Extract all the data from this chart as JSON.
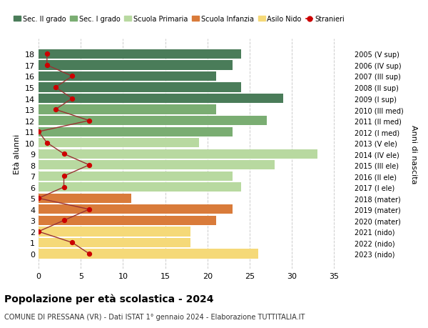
{
  "ages": [
    18,
    17,
    16,
    15,
    14,
    13,
    12,
    11,
    10,
    9,
    8,
    7,
    6,
    5,
    4,
    3,
    2,
    1,
    0
  ],
  "years": [
    "2005 (V sup)",
    "2006 (IV sup)",
    "2007 (III sup)",
    "2008 (II sup)",
    "2009 (I sup)",
    "2010 (III med)",
    "2011 (II med)",
    "2012 (I med)",
    "2013 (V ele)",
    "2014 (IV ele)",
    "2015 (III ele)",
    "2016 (II ele)",
    "2017 (I ele)",
    "2018 (mater)",
    "2019 (mater)",
    "2020 (mater)",
    "2021 (nido)",
    "2022 (nido)",
    "2023 (nido)"
  ],
  "bar_values": [
    24,
    23,
    21,
    24,
    29,
    21,
    27,
    23,
    19,
    33,
    28,
    23,
    24,
    11,
    23,
    21,
    18,
    18,
    26
  ],
  "bar_colors": [
    "#4a7c59",
    "#4a7c59",
    "#4a7c59",
    "#4a7c59",
    "#4a7c59",
    "#7aad72",
    "#7aad72",
    "#7aad72",
    "#b8d9a0",
    "#b8d9a0",
    "#b8d9a0",
    "#b8d9a0",
    "#b8d9a0",
    "#d97b3a",
    "#d97b3a",
    "#d97b3a",
    "#f5d978",
    "#f5d978",
    "#f5d978"
  ],
  "stranieri_values": [
    1,
    1,
    4,
    2,
    4,
    2,
    6,
    0,
    1,
    3,
    6,
    3,
    3,
    0,
    6,
    3,
    0,
    4,
    6
  ],
  "legend_labels": [
    "Sec. II grado",
    "Sec. I grado",
    "Scuola Primaria",
    "Scuola Infanzia",
    "Asilo Nido",
    "Stranieri"
  ],
  "legend_colors": [
    "#4a7c59",
    "#7aad72",
    "#b8d9a0",
    "#d97b3a",
    "#f5d978",
    "#cc0000"
  ],
  "title_bold": "Popolazione per età scolastica - 2024",
  "subtitle": "COMUNE DI PRESSANA (VR) - Dati ISTAT 1° gennaio 2024 - Elaborazione TUTTITALIA.IT",
  "ylabel_left": "Età alunni",
  "ylabel_right": "Anni di nascita",
  "xlim": [
    0,
    37
  ],
  "xticks": [
    0,
    5,
    10,
    15,
    20,
    25,
    30,
    35
  ],
  "background_color": "#ffffff",
  "bar_height": 0.85,
  "stranieri_color": "#cc0000",
  "stranieri_line_color": "#993333",
  "grid_color": "#cccccc"
}
